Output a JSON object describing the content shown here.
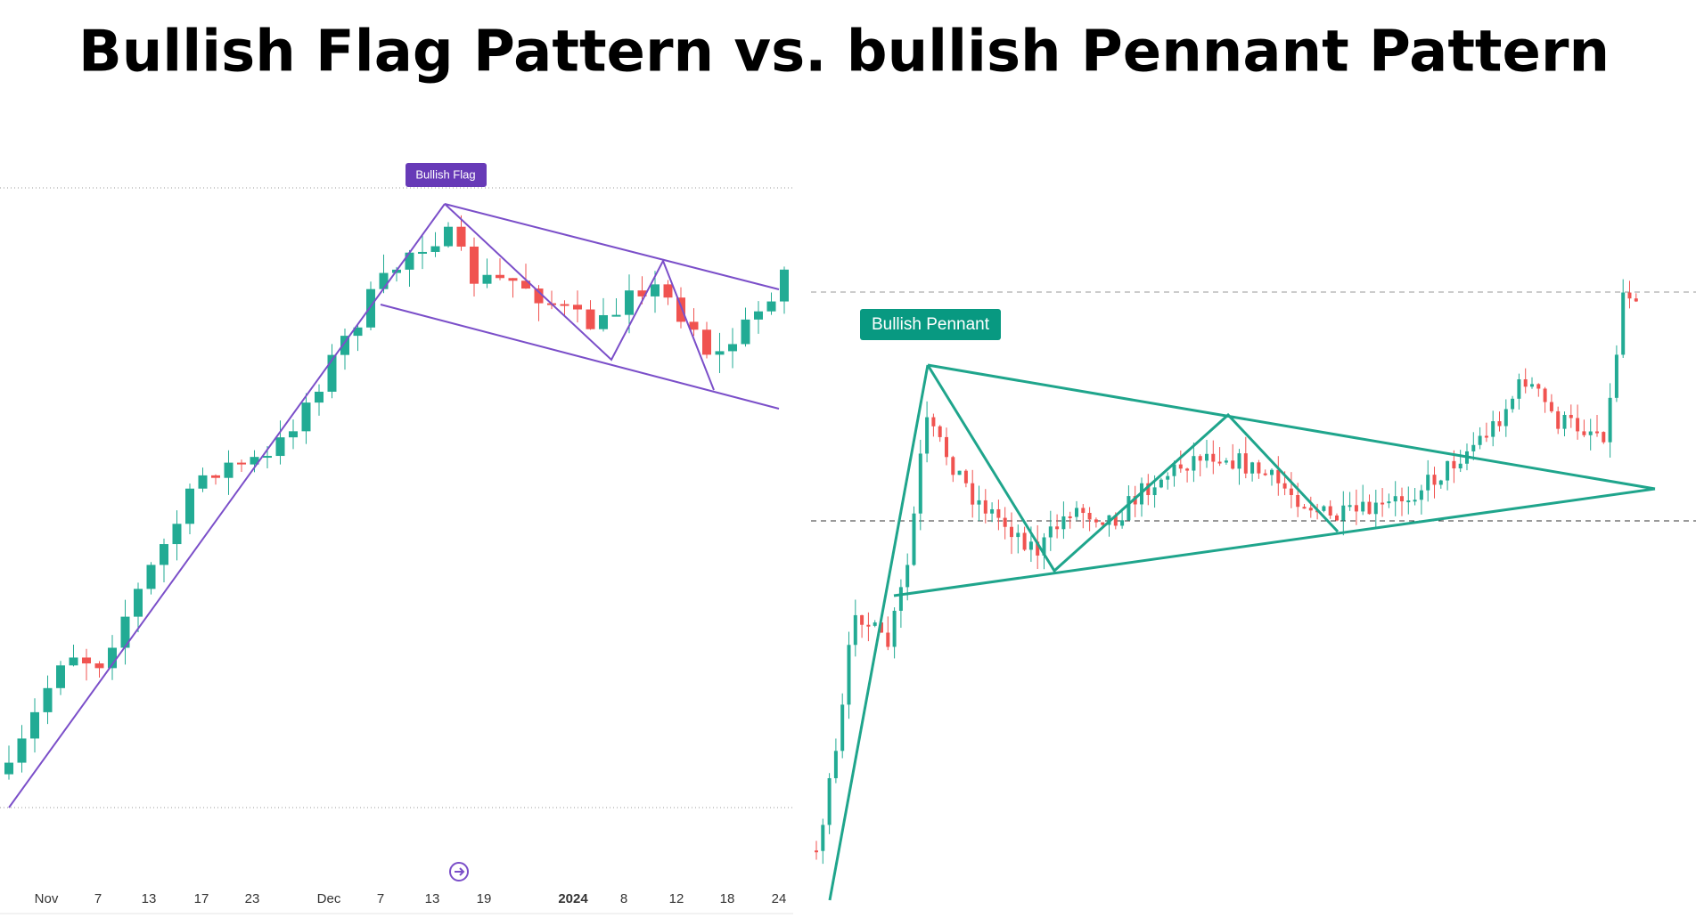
{
  "title": "Bullish Flag Pattern vs. bullish Pennant Pattern",
  "flag_chart": {
    "label": "Bullish Flag",
    "x_labels": [
      "Nov",
      "7",
      "13",
      "17",
      "23",
      "Dec",
      "7",
      "13",
      "19",
      "2024",
      "8",
      "12",
      "18",
      "24"
    ]
  },
  "pennant_chart": {
    "label": "Bullish Pennant"
  }
}
